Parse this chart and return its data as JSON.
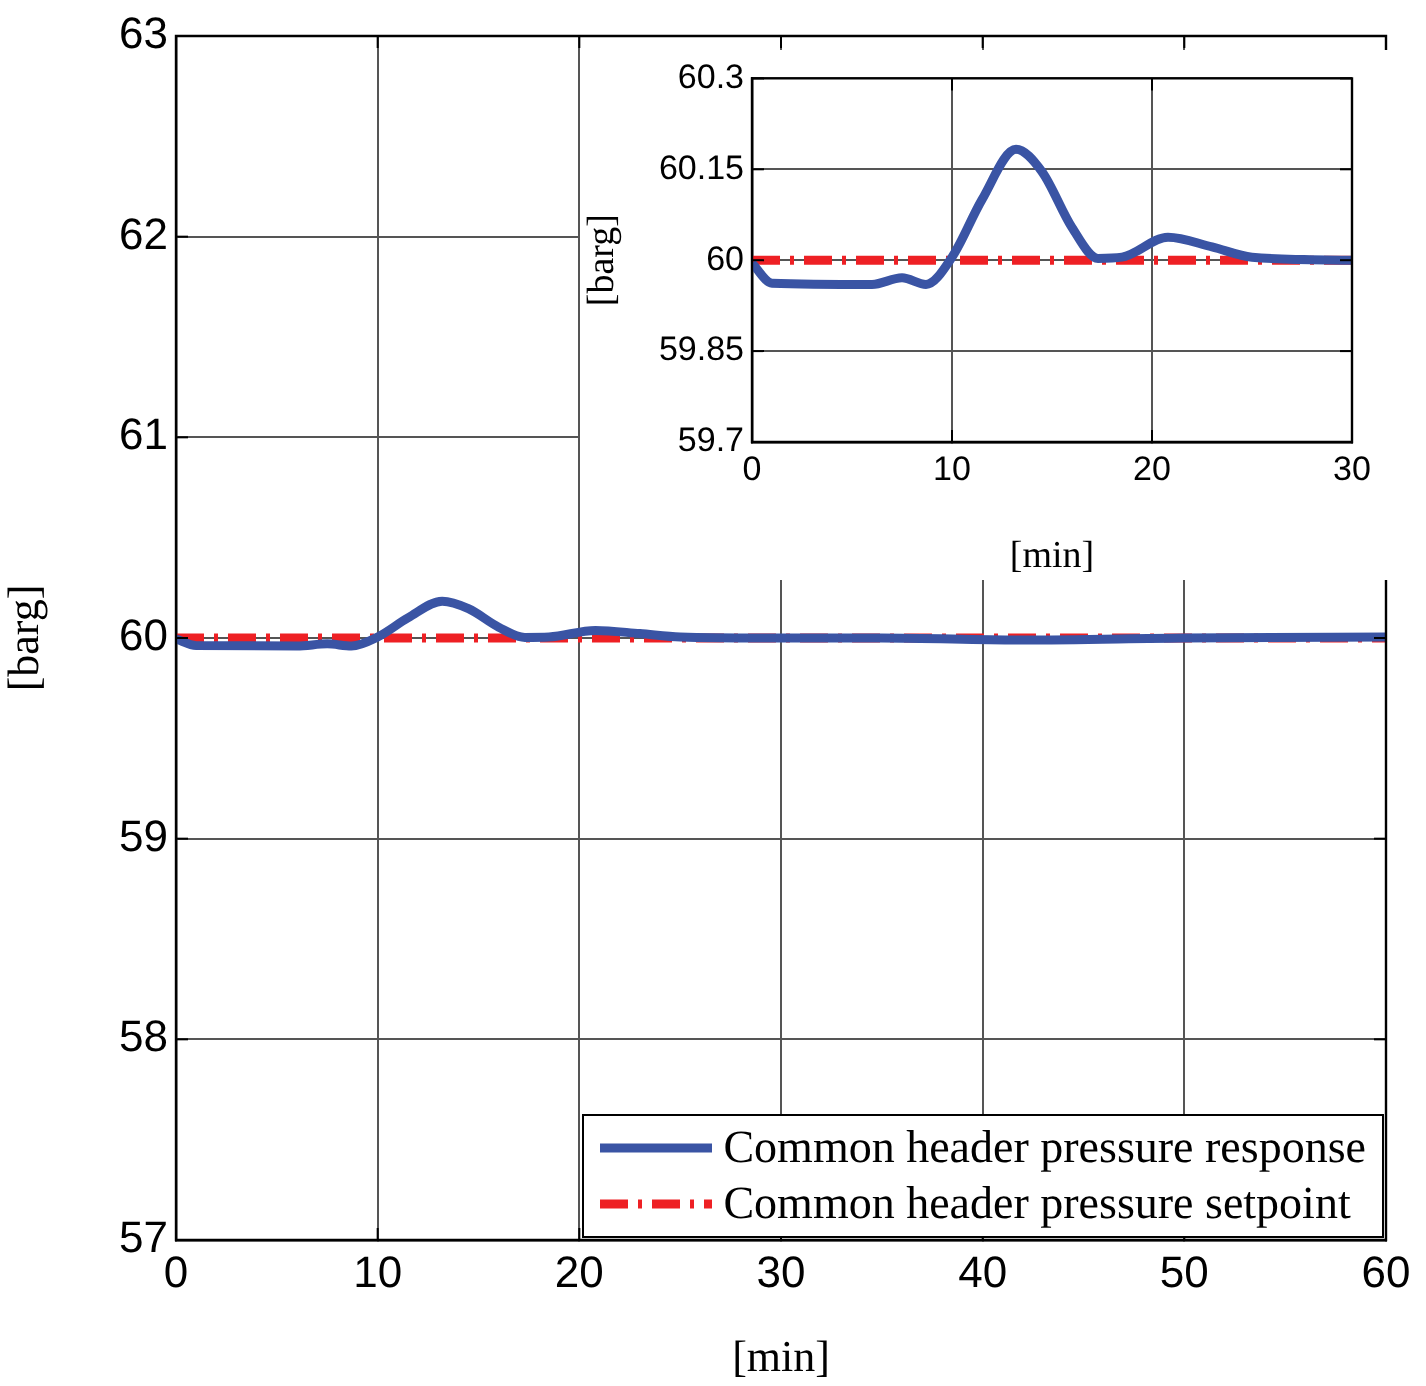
{
  "chart_data": [
    {
      "type": "line",
      "xlabel": "[min]",
      "ylabel": "[barg]",
      "xlim": [
        0,
        60
      ],
      "ylim": [
        57,
        63
      ],
      "xticks": [
        0,
        10,
        20,
        30,
        40,
        50,
        60
      ],
      "yticks": [
        57,
        58,
        59,
        60,
        61,
        62,
        63
      ],
      "grid": true,
      "legend": "bottom right",
      "series": [
        {
          "name": "Common header pressure response",
          "color": "#3a54a4",
          "line_style": "solid",
          "x": [
            0,
            1,
            6,
            7.5,
            8.7,
            10,
            11.5,
            13.2,
            14.5,
            16,
            17.3,
            18.5,
            20.8,
            23,
            25,
            30,
            35,
            42,
            50,
            60
          ],
          "values": [
            59.995,
            59.962,
            59.96,
            59.971,
            59.96,
            60.005,
            60.1,
            60.183,
            60.146,
            60.054,
            60.003,
            60.005,
            60.038,
            60.022,
            60.005,
            60,
            60,
            59.99,
            60,
            60.005
          ]
        },
        {
          "name": "Common header pressure setpoint",
          "color": "#ee2024",
          "line_style": "dashed",
          "x": [
            0,
            60
          ],
          "values": [
            60,
            60
          ]
        }
      ]
    },
    {
      "type": "line",
      "xlabel": "[min]",
      "ylabel": "[barg]",
      "xlim": [
        0,
        30
      ],
      "ylim": [
        59.7,
        60.3
      ],
      "xticks": [
        0,
        10,
        20,
        30
      ],
      "yticks": [
        59.7,
        59.85,
        60,
        60.15,
        60.3
      ],
      "grid": true,
      "series": [
        {
          "color": "#3a54a4",
          "line_style": "solid",
          "x": [
            0,
            1,
            6,
            7.5,
            8.7,
            10,
            11.5,
            13.2,
            14.5,
            16,
            17.3,
            18.5,
            20.8,
            23,
            25,
            30
          ],
          "values": [
            59.995,
            59.962,
            59.96,
            59.971,
            59.96,
            60.005,
            60.1,
            60.183,
            60.146,
            60.054,
            60.003,
            60.005,
            60.038,
            60.022,
            60.005,
            60
          ]
        },
        {
          "color": "#ee2024",
          "line_style": "dashed",
          "x": [
            0,
            30
          ],
          "values": [
            60,
            60
          ]
        }
      ]
    }
  ]
}
